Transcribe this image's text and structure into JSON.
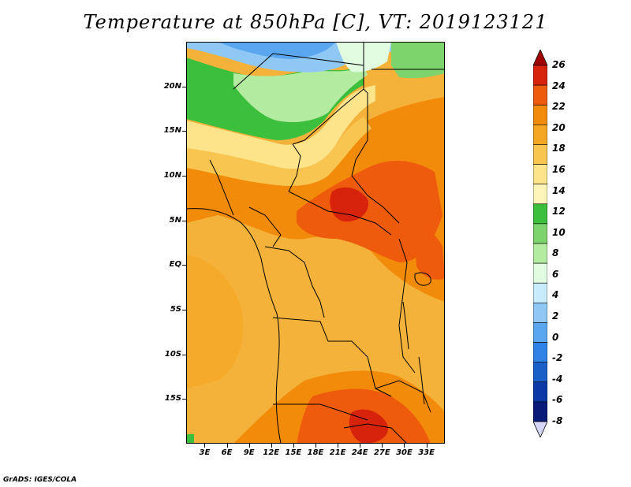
{
  "title": "Temperature at 850hPa [C], VT: 2019123121",
  "footer": "GrADS: IGES/COLA",
  "lat_ticks": [
    {
      "label": "20N",
      "lat": 20
    },
    {
      "label": "15N",
      "lat": 15
    },
    {
      "label": "10N",
      "lat": 10
    },
    {
      "label": "5N",
      "lat": 5
    },
    {
      "label": "EQ",
      "lat": 0
    },
    {
      "label": "5S",
      "lat": -5
    },
    {
      "label": "10S",
      "lat": -10
    },
    {
      "label": "15S",
      "lat": -15
    }
  ],
  "lon_ticks": [
    {
      "label": "3E",
      "lon": 3
    },
    {
      "label": "6E",
      "lon": 6
    },
    {
      "label": "9E",
      "lon": 9
    },
    {
      "label": "12E",
      "lon": 12
    },
    {
      "label": "15E",
      "lon": 15
    },
    {
      "label": "18E",
      "lon": 18
    },
    {
      "label": "21E",
      "lon": 21
    },
    {
      "label": "24E",
      "lon": 24
    },
    {
      "label": "27E",
      "lon": 27
    },
    {
      "label": "30E",
      "lon": 30
    },
    {
      "label": "33E",
      "lon": 33
    }
  ],
  "extent": {
    "lon_min": 0.5,
    "lon_max": 35.5,
    "lat_min": -20,
    "lat_max": 25
  },
  "colorbar": {
    "levels": [
      "26",
      "24",
      "22",
      "20",
      "18",
      "16",
      "14",
      "12",
      "10",
      "8",
      "6",
      "4",
      "2",
      "0",
      "-2",
      "-4",
      "-6",
      "-8"
    ],
    "colors": [
      "#a00000",
      "#d7230c",
      "#ef5b0c",
      "#f28a0a",
      "#f5a623",
      "#f8c550",
      "#fde48a",
      "#fdf5b8",
      "#3cbf3c",
      "#7ed46c",
      "#b3eba1",
      "#e0fbe0",
      "#c8ecfa",
      "#8fc8f5",
      "#5aa7f0",
      "#2f83e6",
      "#1a5ec8",
      "#0b3aa8",
      "#0a1a78",
      "#d6d6f8"
    ]
  }
}
